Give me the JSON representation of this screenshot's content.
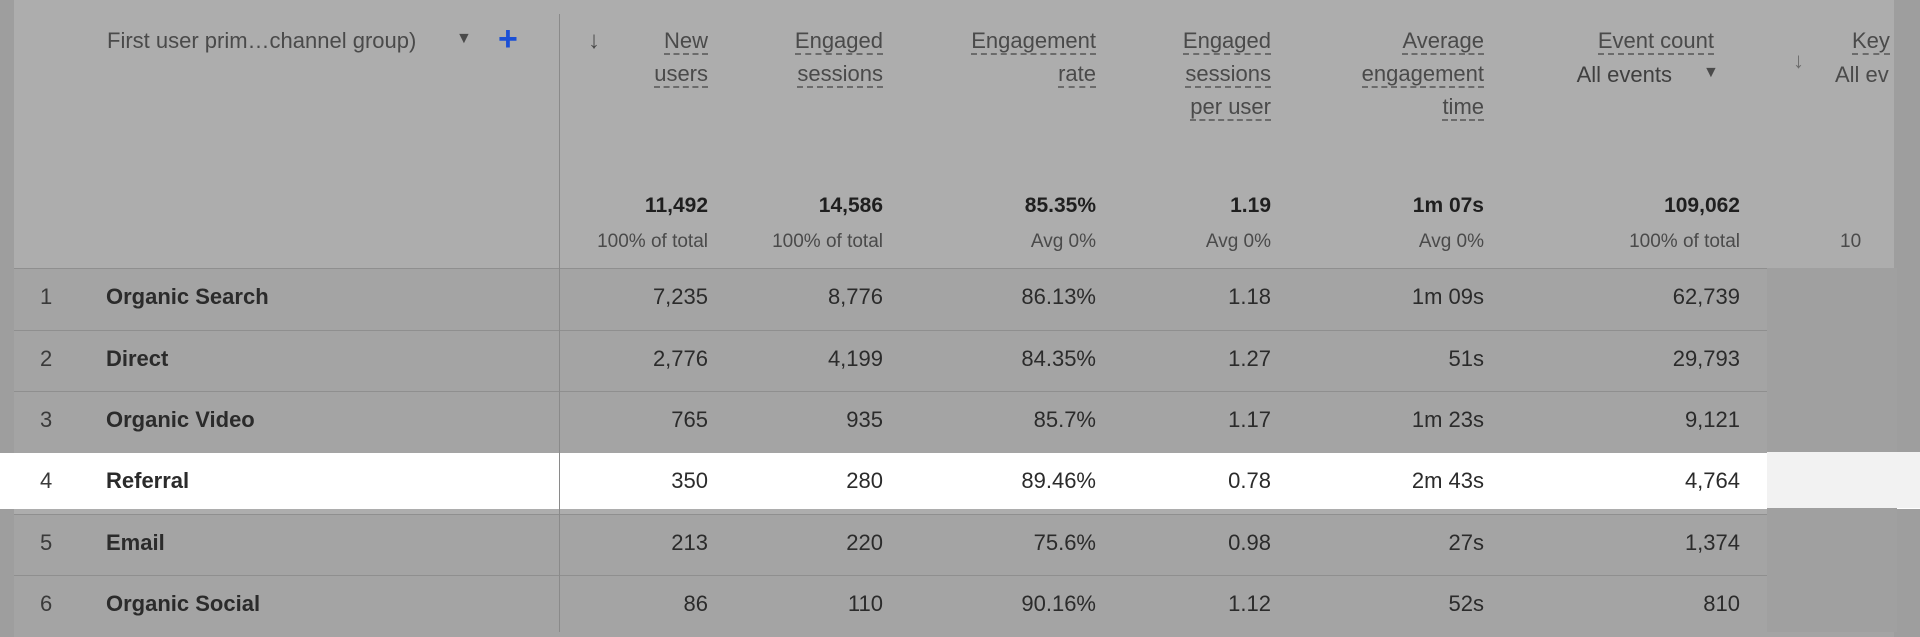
{
  "dimension": {
    "label": "First user prim…channel group)"
  },
  "columns": [
    {
      "key": "new_users",
      "label_lines": [
        "New",
        "users"
      ],
      "total": "11,492",
      "total_sub": "100% of total"
    },
    {
      "key": "engaged_sessions",
      "label_lines": [
        "Engaged",
        "sessions"
      ],
      "total": "14,586",
      "total_sub": "100% of total"
    },
    {
      "key": "engagement_rate",
      "label_lines": [
        "Engagement",
        "rate"
      ],
      "total": "85.35%",
      "total_sub": "Avg 0%"
    },
    {
      "key": "eng_per_user",
      "label_lines": [
        "Engaged",
        "sessions",
        "per user"
      ],
      "total": "1.19",
      "total_sub": "Avg 0%"
    },
    {
      "key": "avg_eng_time",
      "label_lines": [
        "Average",
        "engagement",
        "time"
      ],
      "total": "1m 07s",
      "total_sub": "Avg 0%"
    },
    {
      "key": "event_count",
      "label_lines": [
        "Event count"
      ],
      "selector": "All events",
      "total": "109,062",
      "total_sub": "100% of total"
    },
    {
      "key": "key_events",
      "label_lines": [
        "Key"
      ],
      "selector": "All ev",
      "total": "",
      "total_sub": "10"
    }
  ],
  "rows": [
    {
      "index": "1",
      "name": "Organic Search",
      "values": [
        "7,235",
        "8,776",
        "86.13%",
        "1.18",
        "1m 09s",
        "62,739"
      ]
    },
    {
      "index": "2",
      "name": "Direct",
      "values": [
        "2,776",
        "4,199",
        "84.35%",
        "1.27",
        "51s",
        "29,793"
      ]
    },
    {
      "index": "3",
      "name": "Organic Video",
      "values": [
        "765",
        "935",
        "85.7%",
        "1.17",
        "1m 23s",
        "9,121"
      ]
    },
    {
      "index": "4",
      "name": "Referral",
      "values": [
        "350",
        "280",
        "89.46%",
        "0.78",
        "2m 43s",
        "4,764"
      ],
      "highlighted": true
    },
    {
      "index": "5",
      "name": "Email",
      "values": [
        "213",
        "220",
        "75.6%",
        "0.98",
        "27s",
        "1,374"
      ]
    },
    {
      "index": "6",
      "name": "Organic Social",
      "values": [
        "86",
        "110",
        "90.16%",
        "1.12",
        "52s",
        "810"
      ]
    }
  ],
  "icons": {
    "dropdown": "caret-down-icon",
    "add": "plus-icon",
    "sort": "arrow-down-icon"
  },
  "colors": {
    "accent": "#1a4fd6",
    "highlight_row": "#ffffff"
  }
}
